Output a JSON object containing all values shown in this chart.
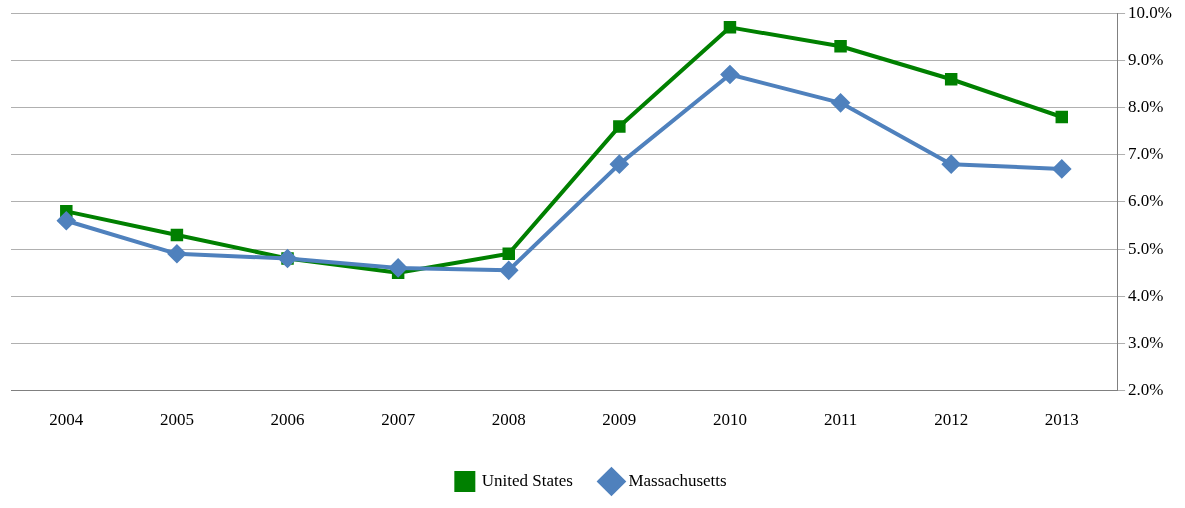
{
  "chart_data": {
    "type": "line",
    "categories": [
      "2004",
      "2005",
      "2006",
      "2007",
      "2008",
      "2009",
      "2010",
      "2011",
      "2012",
      "2013"
    ],
    "series": [
      {
        "name": "United States",
        "color": "#008000",
        "marker": "square",
        "values": [
          5.8,
          5.3,
          4.8,
          4.5,
          4.9,
          7.6,
          9.7,
          9.3,
          8.6,
          7.8
        ]
      },
      {
        "name": "Massachusetts",
        "color": "#4f81bd",
        "marker": "diamond",
        "values": [
          5.6,
          4.9,
          4.8,
          4.6,
          4.55,
          6.8,
          8.7,
          8.1,
          6.8,
          6.7
        ]
      }
    ],
    "ylim": [
      2,
      10
    ],
    "yticks": [
      {
        "value": 2,
        "label": "2.0%"
      },
      {
        "value": 3,
        "label": "3.0%"
      },
      {
        "value": 4,
        "label": "4.0%"
      },
      {
        "value": 5,
        "label": "5.0%"
      },
      {
        "value": 6,
        "label": "6.0%"
      },
      {
        "value": 7,
        "label": "7.0%"
      },
      {
        "value": 8,
        "label": "8.0%"
      },
      {
        "value": 9,
        "label": "9.0%"
      },
      {
        "value": 10,
        "label": "10.0%"
      }
    ],
    "grid": "y",
    "legend": "bottom",
    "line_style": "solid"
  }
}
